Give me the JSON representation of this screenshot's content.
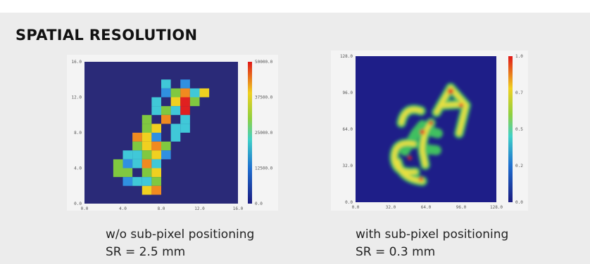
{
  "title": "SPATIAL RESOLUTION",
  "panels": [
    {
      "y_ticks": [
        "16.0",
        "12.0",
        "8.0",
        "4.0",
        "0.0"
      ],
      "x_ticks": [
        "0.0",
        "4.0",
        "8.0",
        "12.0",
        "16.0"
      ],
      "colorbar_ticks": [
        "50000.0",
        "37500.0",
        "25000.0",
        "12500.0",
        "0.0"
      ],
      "caption": "w/o sub-pixel positioning",
      "result": "SR = 2.5 mm"
    },
    {
      "y_ticks": [
        "128.0",
        "96.0",
        "64.0",
        "32.0",
        "0.0"
      ],
      "x_ticks": [
        "0.0",
        "32.0",
        "64.0",
        "96.0",
        "128.0"
      ],
      "colorbar_ticks": [
        "1.0",
        "0.7",
        "0.5",
        "0.2",
        "0.0"
      ],
      "caption": "with sub-pixel positioning",
      "result": "SR = 0.3 mm"
    }
  ]
}
